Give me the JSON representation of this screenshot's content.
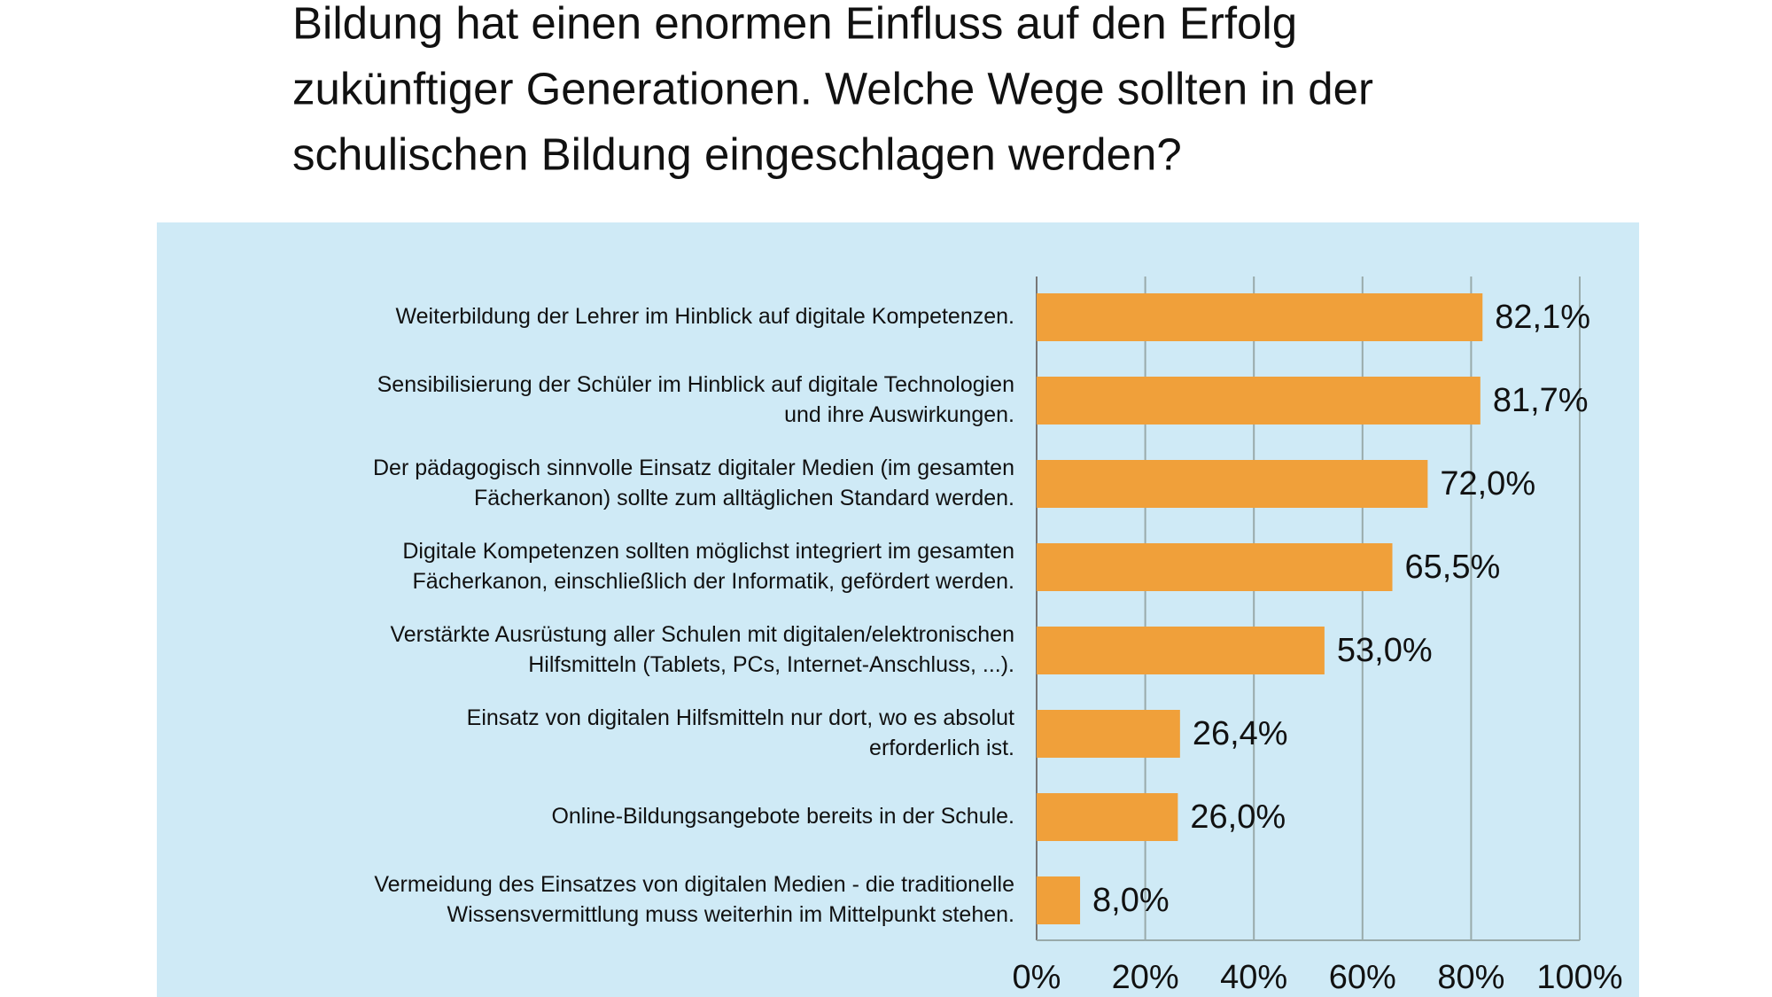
{
  "chart_data": {
    "type": "barh",
    "title": [
      "Bildung hat einen enormen Einfluss auf den Erfolg",
      "zukünftiger Generationen. Welche Wege sollten in der",
      "schulischen Bildung eingeschlagen werden?"
    ],
    "categories": [
      "Weiterbildung der Lehrer im Hinblick auf digitale Kompetenzen.",
      "Sensibilisierung der Schüler im Hinblick auf digitale Technologien\nund ihre Auswirkungen.",
      "Der pädagogisch sinnvolle Einsatz digitaler Medien (im gesamten\nFächerkanon) sollte zum alltäglichen Standard werden.",
      "Digitale Kompetenzen sollten möglichst integriert im gesamten\nFächerkanon, einschließlich der Informatik, gefördert werden.",
      "Verstärkte Ausrüstung aller Schulen mit digitalen/elektronischen\nHilfsmitteln (Tablets, PCs, Internet-Anschluss, ...).",
      "Einsatz von digitalen Hilfsmitteln nur dort, wo es absolut\nerforderlich ist.",
      "Online-Bildungsangebote bereits in der Schule.",
      "Vermeidung des Einsatzes von digitalen Medien - die traditionelle\nWissensvermittlung muss weiterhin im Mittelpunkt stehen."
    ],
    "values": [
      82.1,
      81.7,
      72.0,
      65.5,
      53.0,
      26.4,
      26.0,
      8.0
    ],
    "value_labels": [
      "82,1%",
      "81,7%",
      "72,0%",
      "65,5%",
      "53,0%",
      "26,4%",
      "26,0%",
      "8,0%"
    ],
    "color": "#f0a03a",
    "xlim": [
      0,
      100
    ],
    "xticks": [
      {
        "value": 0,
        "label": "0%"
      },
      {
        "value": 20,
        "label": "20%"
      },
      {
        "value": 40,
        "label": "40%"
      },
      {
        "value": 60,
        "label": "60%"
      },
      {
        "value": 80,
        "label": "80%"
      },
      {
        "value": 100,
        "label": "100%"
      }
    ],
    "grid": true
  }
}
